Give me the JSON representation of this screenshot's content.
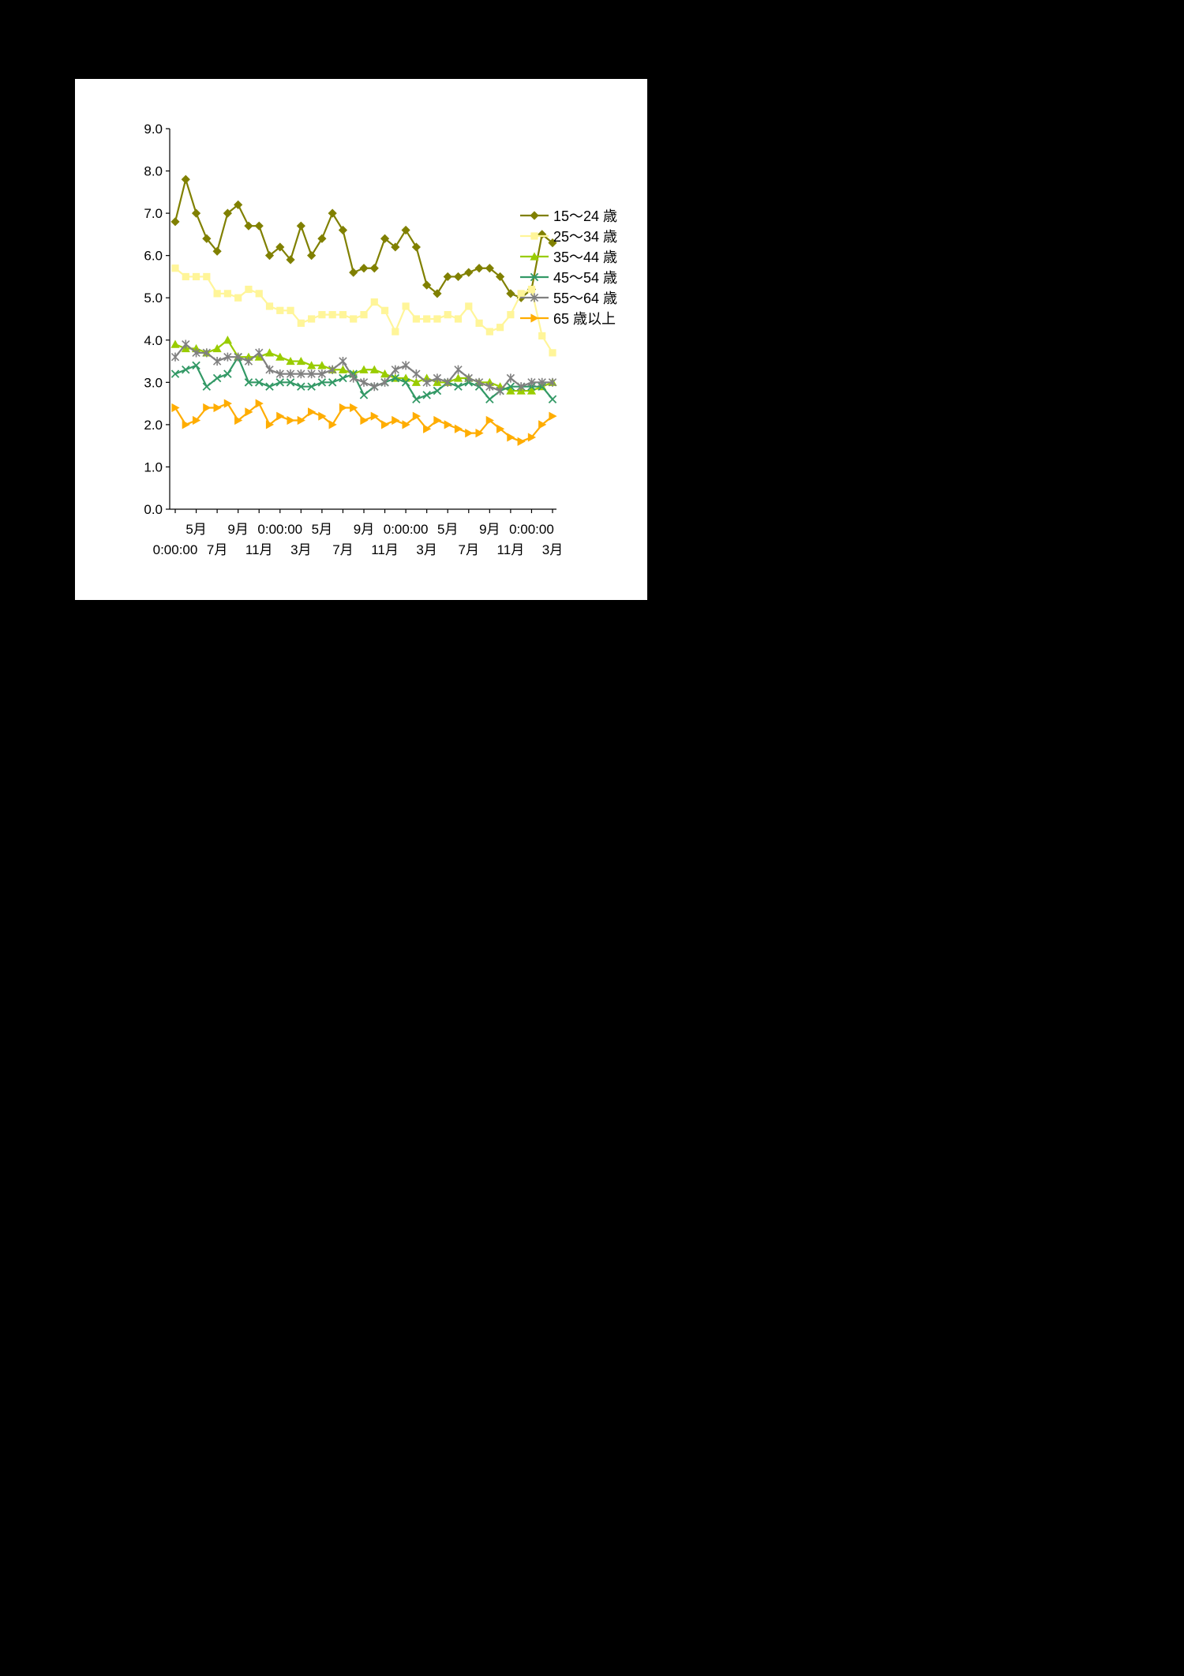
{
  "page": {
    "background_color": "#000000",
    "panel_color": "#FFFFFF"
  },
  "chart_data": {
    "type": "line",
    "title": "",
    "xlabel": "",
    "ylabel": "",
    "ylim": [
      0,
      9
    ],
    "ytick_step": 1,
    "ytick_labels": [
      "0.0",
      "1.0",
      "2.0",
      "3.0",
      "4.0",
      "5.0",
      "6.0",
      "7.0",
      "8.0",
      "9.0"
    ],
    "grid": "off",
    "axis_color": "#000000",
    "legend_position": "right-inside",
    "x_count": 37,
    "xtick_every": 2,
    "xtick_rows": "alternating, first tick on lower row",
    "xtick_labels": [
      "0:00:00",
      "5月",
      "7月",
      "9月",
      "11月",
      "0:00:00",
      "3月",
      "5月",
      "7月",
      "9月",
      "11月",
      "0:00:00",
      "3月",
      "5月",
      "7月",
      "9月",
      "11月",
      "0:00:00",
      "3月"
    ],
    "series": [
      {
        "name": "15～24 歳",
        "color": "#808000",
        "marker": "diamond",
        "values": [
          6.8,
          7.8,
          7.0,
          6.4,
          6.1,
          7.0,
          7.2,
          6.7,
          6.7,
          6.0,
          6.2,
          5.9,
          6.7,
          6.0,
          6.4,
          7.0,
          6.6,
          5.6,
          5.7,
          5.7,
          6.4,
          6.2,
          6.6,
          6.2,
          5.3,
          5.1,
          5.5,
          5.5,
          5.6,
          5.7,
          5.7,
          5.5,
          5.1,
          5.0,
          5.2,
          6.5,
          6.3
        ]
      },
      {
        "name": "25～34 歳",
        "color": "#FFF599",
        "marker": "square",
        "values": [
          5.7,
          5.5,
          5.5,
          5.5,
          5.1,
          5.1,
          5.0,
          5.2,
          5.1,
          4.8,
          4.7,
          4.7,
          4.4,
          4.5,
          4.6,
          4.6,
          4.6,
          4.5,
          4.6,
          4.9,
          4.7,
          4.2,
          4.8,
          4.5,
          4.5,
          4.5,
          4.6,
          4.5,
          4.8,
          4.4,
          4.2,
          4.3,
          4.6,
          5.1,
          5.2,
          4.1,
          3.7
        ]
      },
      {
        "name": "35～44 歳",
        "color": "#99CC00",
        "marker": "triangle",
        "values": [
          3.9,
          3.8,
          3.8,
          3.7,
          3.8,
          4.0,
          3.6,
          3.6,
          3.6,
          3.7,
          3.6,
          3.5,
          3.5,
          3.4,
          3.4,
          3.3,
          3.3,
          3.2,
          3.3,
          3.3,
          3.2,
          3.1,
          3.1,
          3.0,
          3.1,
          3.0,
          3.0,
          3.1,
          3.1,
          3.0,
          3.0,
          2.9,
          2.8,
          2.8,
          2.8,
          2.9,
          3.0
        ]
      },
      {
        "name": "45～54 歳",
        "color": "#339966",
        "marker": "x",
        "values": [
          3.2,
          3.3,
          3.4,
          2.9,
          3.1,
          3.2,
          3.6,
          3.0,
          3.0,
          2.9,
          3.0,
          3.0,
          2.9,
          2.9,
          3.0,
          3.0,
          3.1,
          3.2,
          2.7,
          2.9,
          3.0,
          3.1,
          3.0,
          2.6,
          2.7,
          2.8,
          3.0,
          2.9,
          3.0,
          2.9,
          2.6,
          2.8,
          2.9,
          2.9,
          2.9,
          2.9,
          2.6
        ]
      },
      {
        "name": "55～64 歳",
        "color": "#808080",
        "marker": "star",
        "values": [
          3.6,
          3.9,
          3.7,
          3.7,
          3.5,
          3.6,
          3.6,
          3.5,
          3.7,
          3.3,
          3.2,
          3.2,
          3.2,
          3.2,
          3.2,
          3.3,
          3.5,
          3.1,
          3.0,
          2.9,
          3.0,
          3.3,
          3.4,
          3.2,
          3.0,
          3.1,
          3.0,
          3.3,
          3.1,
          3.0,
          2.9,
          2.8,
          3.1,
          2.9,
          3.0,
          3.0,
          3.0
        ]
      },
      {
        "name": "65 歳以上",
        "color": "#FFAD00",
        "marker": "triangle-right",
        "values": [
          2.4,
          2.0,
          2.1,
          2.4,
          2.4,
          2.5,
          2.1,
          2.3,
          2.5,
          2.0,
          2.2,
          2.1,
          2.1,
          2.3,
          2.2,
          2.0,
          2.4,
          2.4,
          2.1,
          2.2,
          2.0,
          2.1,
          2.0,
          2.2,
          1.9,
          2.1,
          2.0,
          1.9,
          1.8,
          1.8,
          2.1,
          1.9,
          1.7,
          1.6,
          1.7,
          2.0,
          2.2
        ]
      }
    ]
  }
}
